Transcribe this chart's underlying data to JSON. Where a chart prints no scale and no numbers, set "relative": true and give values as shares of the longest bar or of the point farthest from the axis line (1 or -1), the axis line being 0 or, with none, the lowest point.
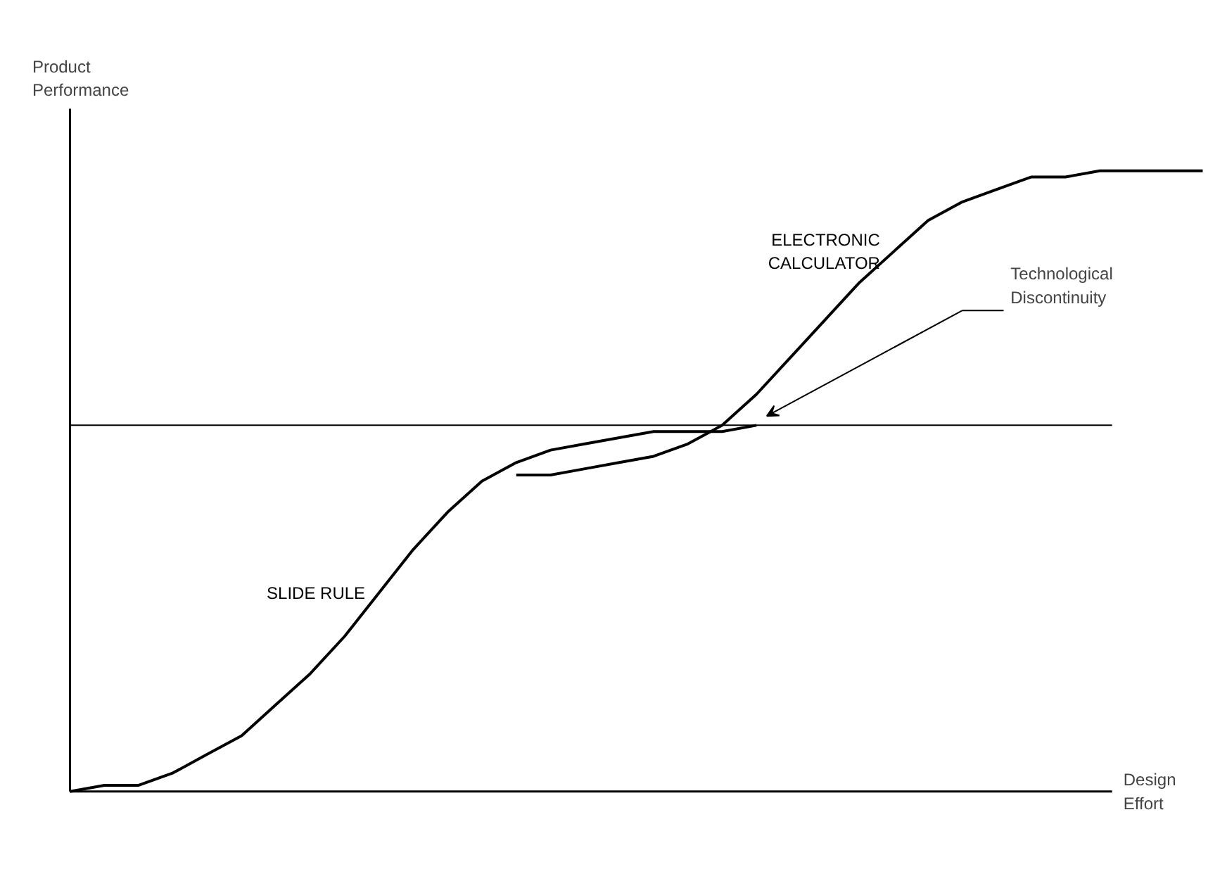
{
  "chart_data": {
    "type": "line",
    "relative": true,
    "xlabel": "Design Effort",
    "ylabel": "Product Performance",
    "categories": [
      null,
      null,
      null,
      null,
      null,
      null,
      null,
      null,
      null,
      null,
      null,
      null,
      null,
      null,
      null,
      null,
      null,
      null,
      null,
      null,
      null,
      null,
      null,
      null,
      null,
      null,
      null,
      null,
      null,
      null,
      null,
      null,
      null,
      null
    ],
    "series": [
      {
        "name": "SLIDE RULE",
        "color": "#000000",
        "values": [
          0,
          0.01,
          0.01,
          0.03,
          0.06,
          0.09,
          0.14,
          0.19,
          0.25,
          0.32,
          0.39,
          0.45,
          0.5,
          0.53,
          0.55,
          0.56,
          0.57,
          0.58,
          0.58,
          0.58,
          0.59,
          null,
          null,
          null,
          null,
          null,
          null,
          null,
          null,
          null,
          null,
          null,
          null,
          null
        ]
      },
      {
        "name": "ELECTRONIC CALCULATOR",
        "color": "#000000",
        "values": [
          null,
          null,
          null,
          null,
          null,
          null,
          null,
          null,
          null,
          null,
          null,
          null,
          null,
          0.51,
          0.51,
          0.52,
          0.53,
          0.54,
          0.56,
          0.59,
          0.64,
          0.7,
          0.76,
          0.82,
          0.87,
          0.92,
          0.95,
          0.97,
          0.99,
          0.99,
          1.0,
          1.0,
          1.0,
          1.0
        ]
      }
    ],
    "ref_lines": [
      {
        "axis": "y",
        "value": 0.59
      }
    ],
    "annotations": [
      "Technological Discontinuity"
    ],
    "grid": false,
    "line_style": "solid",
    "marker": "none"
  }
}
